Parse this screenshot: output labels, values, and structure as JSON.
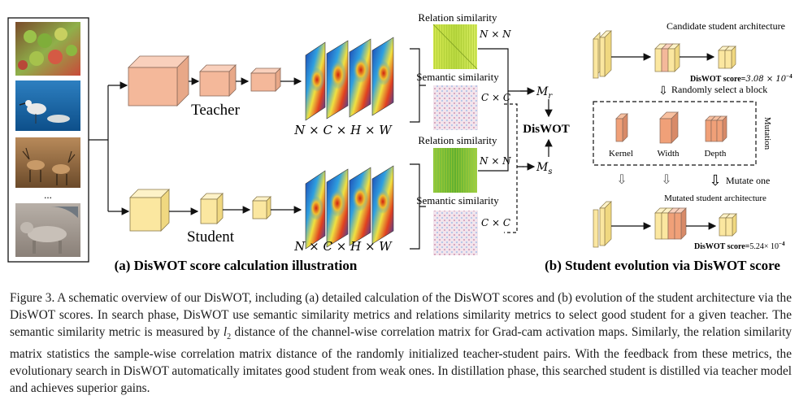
{
  "panel_a": {
    "teacher_label": "Teacher",
    "student_label": "Student",
    "ellipsis": "...",
    "feature_shape_teacher": "N × C × H × W",
    "feature_shape_student": "N × C × H × W",
    "relation_top": "Relation similarity",
    "semantic_top": "Semantic similarity",
    "relation_bottom": "Relation similarity",
    "semantic_bottom": "Semantic similarity",
    "nxn_top": "N × N",
    "cxc_top": "C × C",
    "nxn_bottom": "N × N",
    "cxc_bottom": "C × C",
    "mr_script": "M",
    "mr_sub": "r",
    "ms_script": "M",
    "ms_sub": "s",
    "diswot": "DisWOT",
    "title": "(a) DisWOT score calculation illustration"
  },
  "panel_b": {
    "candidate": "Candidate student architecture",
    "score_top_prefix": "DisWOT score=",
    "score_top_value": "3.08 × 10",
    "score_top_exp": "−4",
    "random_select": "Randomly select a block",
    "kernel": "Kernel",
    "width": "Width",
    "depth": "Depth",
    "mutation": "Mutation",
    "mutate_one": "Mutate one",
    "mutated": "Mutated student architecture",
    "score_bottom_prefix": "DisWOT score=",
    "score_bottom_value": "5.24× 10",
    "score_bottom_exp": "−4",
    "title": "(b) Student evolution via DisWOT score"
  },
  "caption": {
    "p1": "Figure 3. A schematic overview of our DisWOT, including (a) detailed calculation of the DisWOT scores and (b) evolution of the student architecture via the DisWOT scores. In search phase, DisWOT use semantic similarity metrics and relations similarity metrics to select good student for a given teacher. The semantic similarity metric is measured by ",
    "l2_base": "l",
    "l2_sub": "2",
    "p2": " distance of the channel-wise correlation matrix for Grad-cam activation maps. Similarly, the relation similarity matrix statistics the sample-wise correlation matrix distance of the randomly initialized teacher-student pairs. With the feedback from these metrics, the evolutionary search in DisWOT automatically imitates good student from weak ones. In distillation phase, this searched student is distilled via teacher model and achieves superior gains."
  },
  "colors": {
    "teacher_block": "#f4b89a",
    "student_block": "#fbe7a0",
    "relation_map": "#c8e04a",
    "semantic_map": "#e8c8d8",
    "mutation_block": "#f0a078"
  },
  "icons": {
    "image_1": "fruit-photo-icon",
    "image_2": "bird-photo-icon",
    "image_3": "deer-photo-icon",
    "image_4": "dog-photo-icon"
  }
}
